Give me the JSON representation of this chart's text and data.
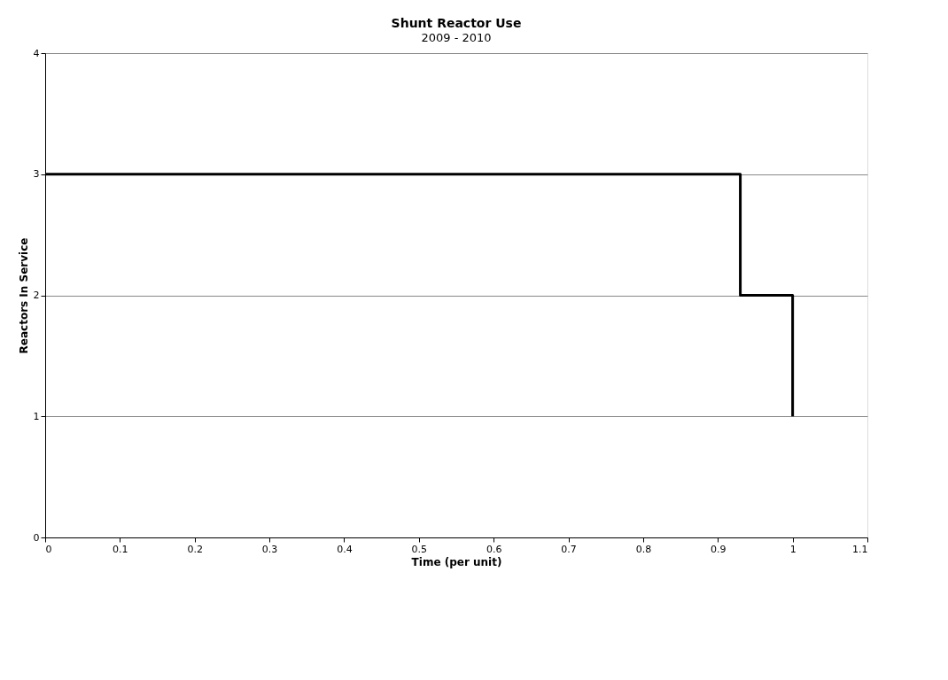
{
  "chart_data": {
    "type": "step",
    "title": "Shunt Reactor Use",
    "subtitle": "2009 - 2010",
    "xlabel": "Time (per unit)",
    "ylabel": "Reactors In Service",
    "x": [
      0,
      0.93,
      1
    ],
    "series": [
      {
        "color": "#000000",
        "values": [
          3,
          2,
          1
        ]
      }
    ],
    "xlim": [
      0,
      1.1
    ],
    "xticks": [
      0,
      0.1,
      0.2,
      0.3,
      0.4,
      0.5,
      0.6,
      0.7,
      0.8,
      0.9,
      1,
      1.1
    ],
    "ylim": [
      0,
      4
    ],
    "yticks": [
      0,
      1,
      2,
      3,
      4
    ],
    "grid": "y",
    "marker": "none",
    "line_style": "solid"
  }
}
